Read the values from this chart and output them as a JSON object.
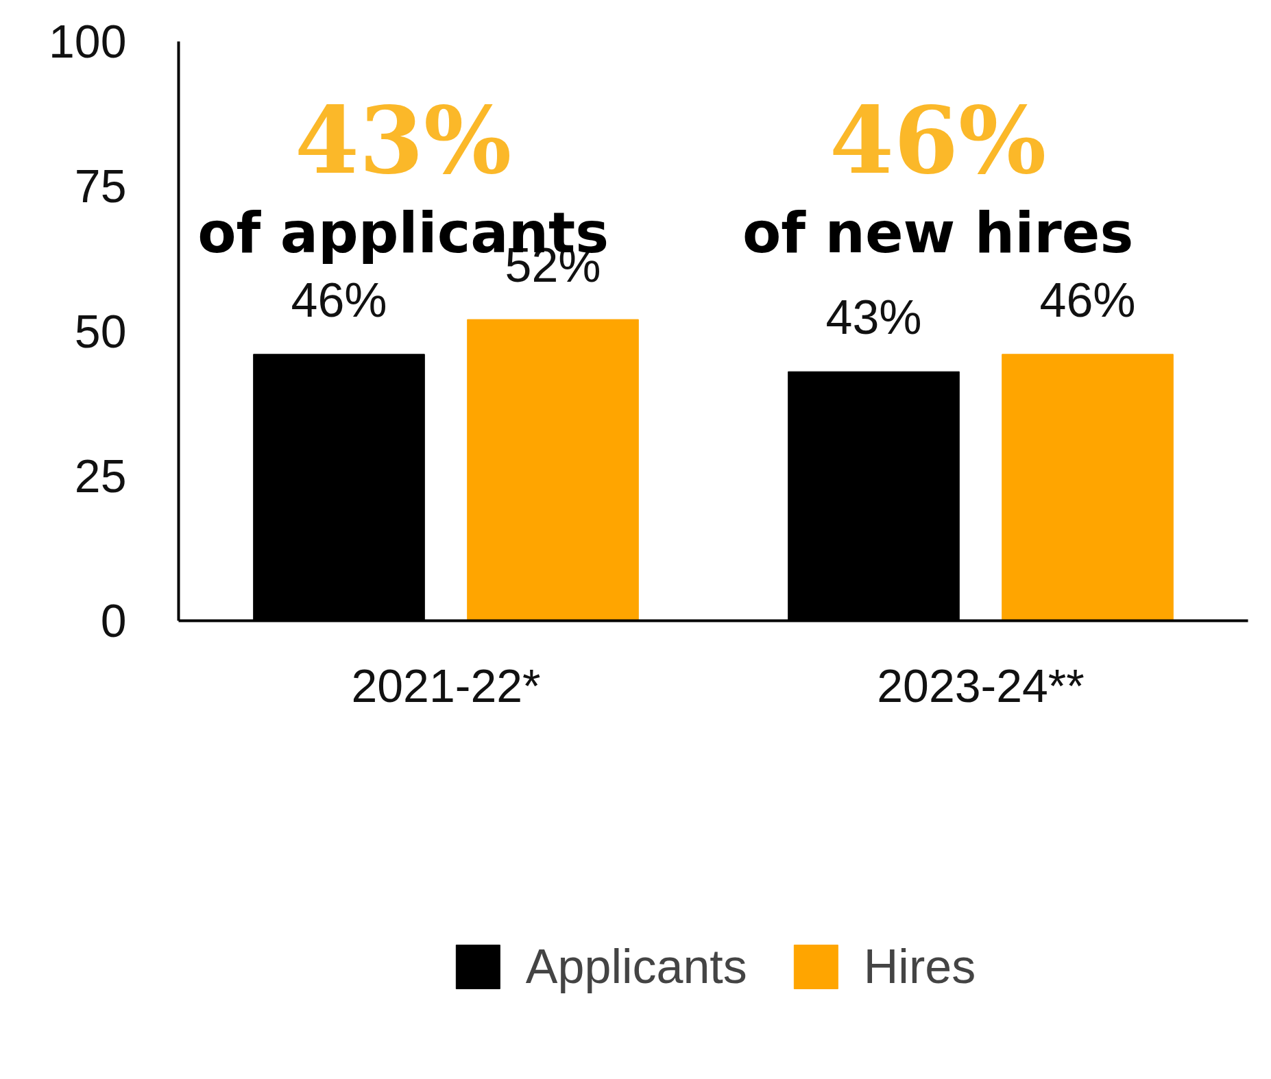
{
  "chart_data": {
    "type": "bar",
    "categories": [
      "2021-22*",
      "2023-24**"
    ],
    "series": [
      {
        "name": "Applicants",
        "color": "#000000",
        "values": [
          46,
          43
        ],
        "value_labels": [
          "46%",
          "43%"
        ]
      },
      {
        "name": "Hires",
        "color": "#ffa500",
        "values": [
          52,
          46
        ],
        "value_labels": [
          "52%",
          "46%"
        ]
      }
    ],
    "ylim": [
      0,
      100
    ],
    "yticks": [
      0,
      25,
      50,
      75,
      100
    ],
    "grid": false,
    "legend": "bottom",
    "annotations": [
      "43%",
      "of applicants",
      "46%",
      "of new hires"
    ]
  }
}
